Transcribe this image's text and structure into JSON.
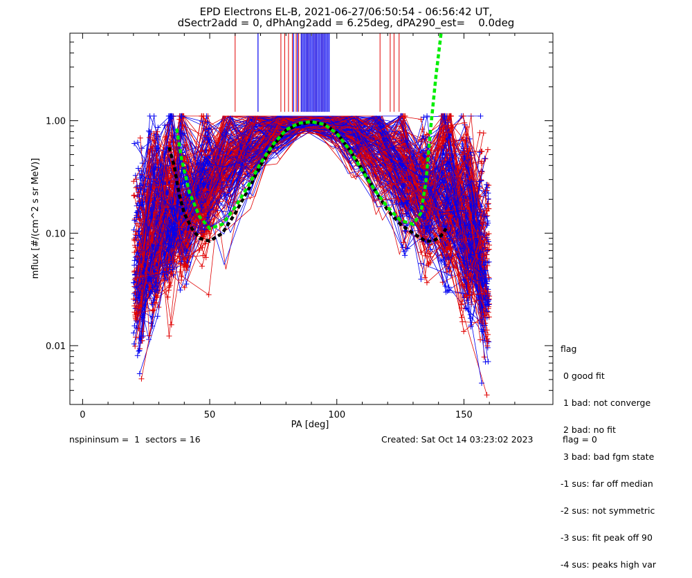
{
  "title": {
    "line1": "EPD Electrons EL-B, 2021-06-27/06:50:54 - 06:56:42 UT,",
    "line2": "dSectr2add = 0, dPhAng2add = 6.25deg, dPA290_est=    0.0deg"
  },
  "chart_data": {
    "type": "line",
    "xlabel": "PA [deg]",
    "ylabel": "mflux [#/(cm^2 s sr MeV)]",
    "xlim": [
      -5,
      185
    ],
    "ylim": [
      0.003,
      6.0
    ],
    "yscale": "log",
    "xticks": [
      0,
      50,
      100,
      150
    ],
    "xtick_labels": [
      "0",
      "50",
      "100",
      "150"
    ],
    "yticks": [
      0.01,
      0.1,
      1.0
    ],
    "ytick_labels": [
      "0.01",
      "0.10",
      "1.00"
    ],
    "grid": false,
    "legend": "right-outside",
    "colors": {
      "red": "#e00000",
      "blue": "#0000f0",
      "green": "#00ee00",
      "black": "#000000"
    },
    "median_fit": {
      "name": "median fit (black dashed)",
      "x": [
        34,
        36,
        38,
        40,
        43,
        46,
        50,
        55,
        60,
        65,
        70,
        75,
        80,
        85,
        90,
        95,
        100,
        105,
        110,
        115,
        120,
        125,
        130,
        135,
        138,
        141,
        143
      ],
      "y": [
        0.58,
        0.4,
        0.22,
        0.15,
        0.11,
        0.09,
        0.085,
        0.1,
        0.15,
        0.24,
        0.4,
        0.6,
        0.82,
        0.93,
        0.97,
        0.93,
        0.78,
        0.55,
        0.37,
        0.24,
        0.16,
        0.12,
        0.1,
        0.085,
        0.085,
        0.095,
        0.11
      ]
    },
    "model_fit": {
      "name": "fit (green dashed)",
      "x": [
        37,
        39,
        42,
        46,
        50,
        55,
        60,
        65,
        70,
        75,
        80,
        85,
        90,
        95,
        100,
        105,
        110,
        115,
        120,
        125,
        130,
        133,
        135,
        137,
        139,
        141
      ],
      "y": [
        0.85,
        0.45,
        0.23,
        0.14,
        0.11,
        0.12,
        0.17,
        0.26,
        0.42,
        0.62,
        0.83,
        0.95,
        0.98,
        0.93,
        0.77,
        0.55,
        0.36,
        0.24,
        0.17,
        0.13,
        0.12,
        0.15,
        0.28,
        0.9,
        2.5,
        6.0
      ]
    },
    "spikes": {
      "red_x": [
        60,
        78,
        79.5,
        81,
        82.5,
        84,
        85,
        86,
        87,
        88,
        89,
        90,
        91,
        92,
        93,
        94,
        95,
        96,
        117,
        121,
        122.5,
        124.5
      ],
      "blue_x": [
        69,
        83,
        84.5,
        86,
        86.5,
        87,
        87.5,
        88,
        88.5,
        89,
        89.5,
        90,
        90.5,
        91,
        91.5,
        92,
        92.5,
        93,
        93.5,
        94,
        94.5,
        95,
        95.5,
        96,
        96.5,
        97
      ],
      "y_bottom": 1.2,
      "y_top": 6.0
    }
  },
  "legend": {
    "title": "flag",
    "items": [
      " 0 good fit",
      " 1 bad: not converge",
      " 2 bad: no fit",
      " 3 bad: bad fgm state",
      "-1 sus: far off median",
      "-2 sus: not symmetric",
      "-3 sus: fit peak off 90",
      "-4 sus: peaks high var"
    ]
  },
  "footer": {
    "left": "nspininsum =  1  sectors = 16",
    "created": "Created: Sat Oct 14 03:23:02 2023",
    "flag": "flag = 0"
  }
}
